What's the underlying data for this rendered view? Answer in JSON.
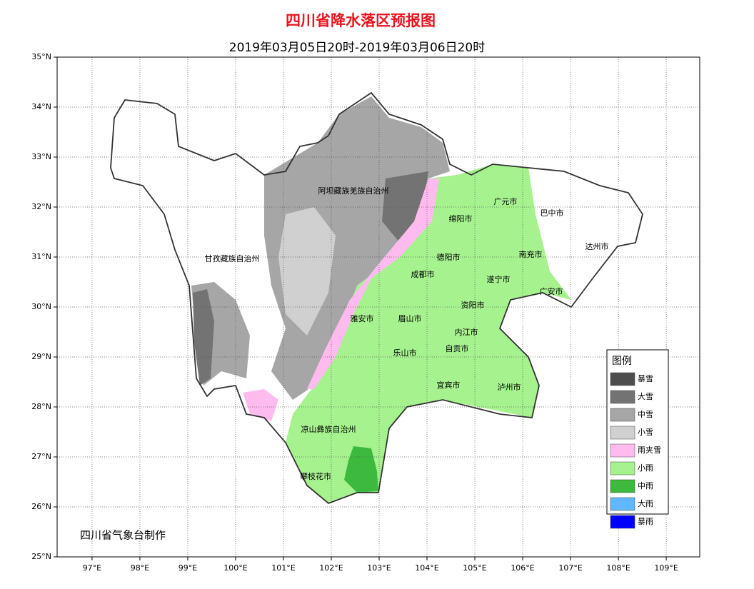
{
  "map": {
    "title": "四川省降水落区预报图",
    "subtitle": "2019年03月05日20时-2019年03月06日20时",
    "credit": "四川省气象台制作",
    "xlim": [
      96.27,
      109.7
    ],
    "ylim": [
      25,
      35
    ],
    "xticks": [
      {
        "value": 97,
        "label": "97°E"
      },
      {
        "value": 98,
        "label": "98°E"
      },
      {
        "value": 99,
        "label": "99°E"
      },
      {
        "value": 100,
        "label": "100°E"
      },
      {
        "value": 101,
        "label": "101°E"
      },
      {
        "value": 102,
        "label": "102°E"
      },
      {
        "value": 103,
        "label": "103°E"
      },
      {
        "value": 104,
        "label": "104°E"
      },
      {
        "value": 105,
        "label": "105°E"
      },
      {
        "value": 106,
        "label": "106°E"
      },
      {
        "value": 107,
        "label": "107°E"
      },
      {
        "value": 108,
        "label": "108°E"
      },
      {
        "value": 109,
        "label": "109°E"
      }
    ],
    "yticks": [
      {
        "value": 25,
        "label": "25°N"
      },
      {
        "value": 26,
        "label": "26°N"
      },
      {
        "value": 27,
        "label": "27°N"
      },
      {
        "value": 28,
        "label": "28°N"
      },
      {
        "value": 29,
        "label": "29°N"
      },
      {
        "value": 30,
        "label": "30°N"
      },
      {
        "value": 31,
        "label": "31°N"
      },
      {
        "value": 32,
        "label": "32°N"
      },
      {
        "value": 33,
        "label": "33°N"
      },
      {
        "value": 34,
        "label": "34°N"
      },
      {
        "value": 35,
        "label": "35°N"
      }
    ],
    "regions": [
      "阿坝藏族羌族自治州",
      "甘孜藏族自治州",
      "广元市",
      "巴中市",
      "绵阳市",
      "达州市",
      "德阳市",
      "南充市",
      "成都市",
      "遂宁市",
      "广安市",
      "资阳市",
      "雅安市",
      "眉山市",
      "内江市",
      "乐山市",
      "自贡市",
      "宜宾市",
      "泸州市",
      "凉山彝族自治州",
      "攀枝花市"
    ],
    "legend": {
      "title": "图例",
      "items": [
        {
          "label": "暴雪",
          "color": "#4d4d4d"
        },
        {
          "label": "大雪",
          "color": "#737373"
        },
        {
          "label": "中雪",
          "color": "#a6a6a6"
        },
        {
          "label": "小雪",
          "color": "#d0d0d0"
        },
        {
          "label": "雨夹雪",
          "color": "#ffbbee"
        },
        {
          "label": "小雨",
          "color": "#a6f28f"
        },
        {
          "label": "中雨",
          "color": "#3dba3d"
        },
        {
          "label": "大雨",
          "color": "#61b8ff"
        },
        {
          "label": "暴雨",
          "color": "#0000fe"
        }
      ]
    }
  }
}
